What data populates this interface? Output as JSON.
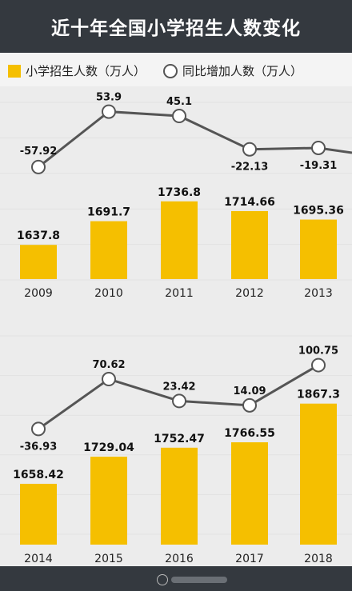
{
  "title": "近十年全国小学招生人数变化",
  "legend": {
    "bar": "小学招生人数（万人）",
    "line": "同比增加人数（万人）"
  },
  "colors": {
    "bar": "#f5bf00",
    "line": "#555555",
    "header": "#34393f"
  },
  "chart_data": [
    {
      "type": "bar",
      "categories": [
        "2009",
        "2010",
        "2011",
        "2012",
        "2013"
      ],
      "series": [
        {
          "name": "小学招生人数（万人）",
          "type": "bar",
          "values": [
            1637.8,
            1691.7,
            1736.8,
            1714.66,
            1695.36
          ]
        },
        {
          "name": "同比增加人数（万人）",
          "type": "line",
          "values": [
            -57.92,
            53.9,
            45.1,
            -22.13,
            -19.31
          ]
        }
      ]
    },
    {
      "type": "bar",
      "categories": [
        "2014",
        "2015",
        "2016",
        "2017",
        "2018"
      ],
      "series": [
        {
          "name": "小学招生人数（万人）",
          "type": "bar",
          "values": [
            1658.42,
            1729.04,
            1752.47,
            1766.55,
            1867.3
          ]
        },
        {
          "name": "同比增加人数（万人）",
          "type": "line",
          "values": [
            -36.93,
            70.62,
            23.42,
            14.09,
            100.75
          ]
        }
      ]
    }
  ]
}
